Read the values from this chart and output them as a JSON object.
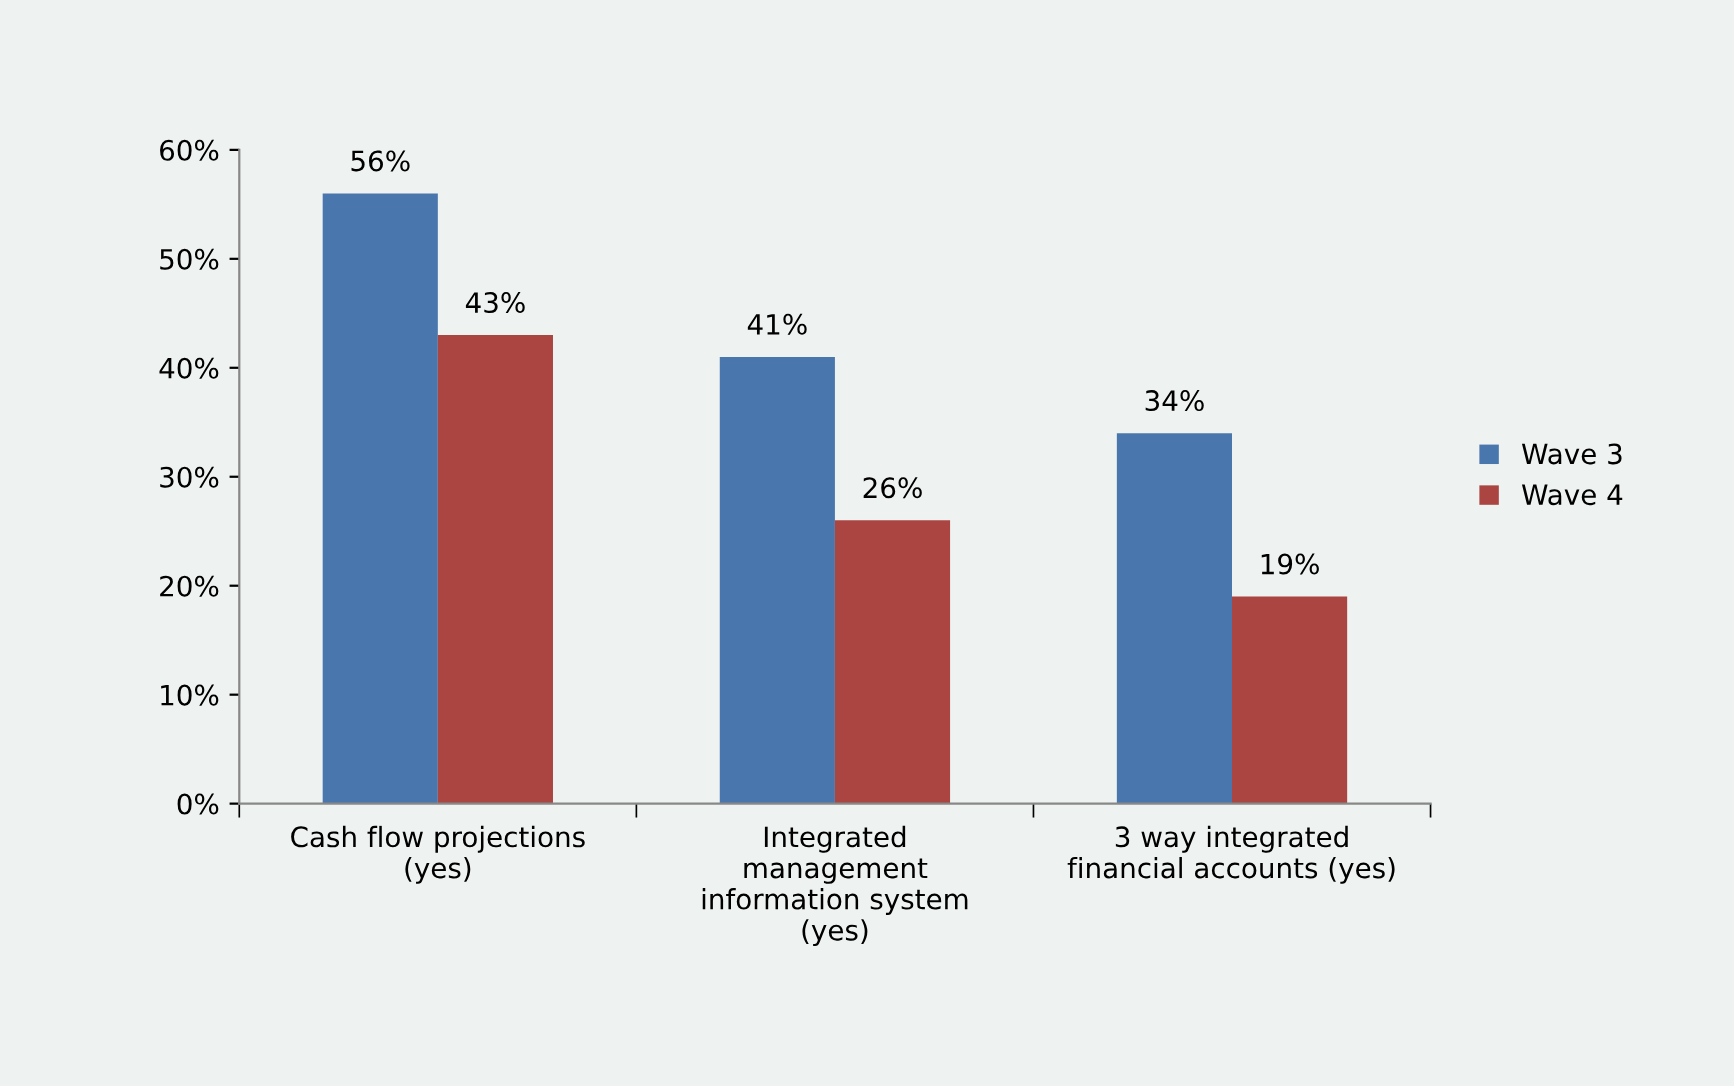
{
  "chart_data": {
    "type": "bar",
    "categories": [
      "Cash flow projections\n(yes)",
      "Integrated\nmanagement\ninformation system\n(yes)",
      "3 way integrated\nfinancial accounts (yes)"
    ],
    "series": [
      {
        "name": "Wave 3",
        "color": "#4a76ae",
        "values": [
          56,
          41,
          34
        ],
        "value_labels": [
          "56%",
          "41%",
          "34%"
        ]
      },
      {
        "name": "Wave 4",
        "color": "#aa4542",
        "values": [
          43,
          26,
          19
        ],
        "value_labels": [
          "43%",
          "26%",
          "19%"
        ]
      }
    ],
    "ylim": [
      0,
      60
    ],
    "yticks": [
      {
        "value": 0,
        "label": "0%"
      },
      {
        "value": 10,
        "label": "10%"
      },
      {
        "value": 20,
        "label": "20%"
      },
      {
        "value": 30,
        "label": "30%"
      },
      {
        "value": 40,
        "label": "40%"
      },
      {
        "value": 50,
        "label": "50%"
      },
      {
        "value": 60,
        "label": "60%"
      }
    ],
    "grid": false,
    "legend": "right"
  }
}
